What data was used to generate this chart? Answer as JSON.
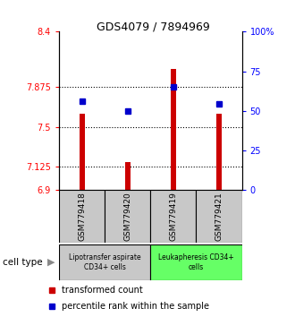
{
  "title": "GDS4079 / 7894969",
  "samples": [
    "GSM779418",
    "GSM779420",
    "GSM779419",
    "GSM779421"
  ],
  "red_values": [
    7.62,
    7.17,
    8.05,
    7.62
  ],
  "blue_values": [
    7.74,
    7.65,
    7.875,
    7.72
  ],
  "y_min": 6.9,
  "y_max": 8.4,
  "y_ticks_left": [
    6.9,
    7.125,
    7.5,
    7.875,
    8.4
  ],
  "y_ticks_right_pct": [
    0,
    25,
    50,
    75,
    100
  ],
  "ytick_labels_left": [
    "6.9",
    "7.125",
    "7.5",
    "7.875",
    "8.4"
  ],
  "ytick_labels_right": [
    "0",
    "25",
    "50",
    "75",
    "100%"
  ],
  "dotted_lines": [
    7.125,
    7.5,
    7.875
  ],
  "group1_label": "Lipotransfer aspirate\nCD34+ cells",
  "group2_label": "Leukapheresis CD34+\ncells",
  "group1_indices": [
    0,
    1
  ],
  "group2_indices": [
    2,
    3
  ],
  "cell_type_label": "cell type",
  "legend_red": "transformed count",
  "legend_blue": "percentile rank within the sample",
  "bar_color": "#CC0000",
  "blue_color": "#0000CC",
  "group1_bg": "#C8C8C8",
  "group2_bg": "#66FF66",
  "bar_bottom": 6.9,
  "bar_width": 0.12
}
